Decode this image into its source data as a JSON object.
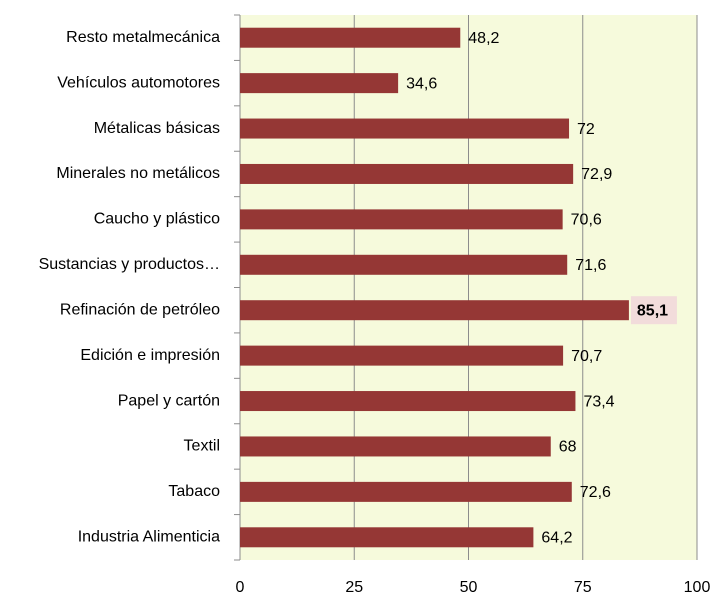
{
  "chart_data": {
    "type": "barh",
    "categories": [
      "Resto metalmecánica",
      "Vehículos automotores",
      "Métalicas básicas",
      "Minerales no metálicos",
      "Caucho y plástico",
      "Sustancias y productos…",
      "Refinación de petróleo",
      "Edición e impresión",
      "Papel y cartón",
      "Textil",
      "Tabaco",
      "Industria Alimenticia"
    ],
    "values": [
      48.2,
      34.6,
      72,
      72.9,
      70.6,
      71.6,
      85.1,
      70.7,
      73.4,
      68,
      72.6,
      64.2
    ],
    "value_labels": [
      "48,2",
      "34,6",
      "72",
      "72,9",
      "70,6",
      "71,6",
      "85,1",
      "70,7",
      "73,4",
      "68",
      "72,6",
      "64,2"
    ],
    "color": "#953735",
    "highlight_index": 6,
    "xlim": [
      0,
      100
    ],
    "xticks": [
      0,
      25,
      50,
      75,
      100
    ],
    "grid": true
  }
}
